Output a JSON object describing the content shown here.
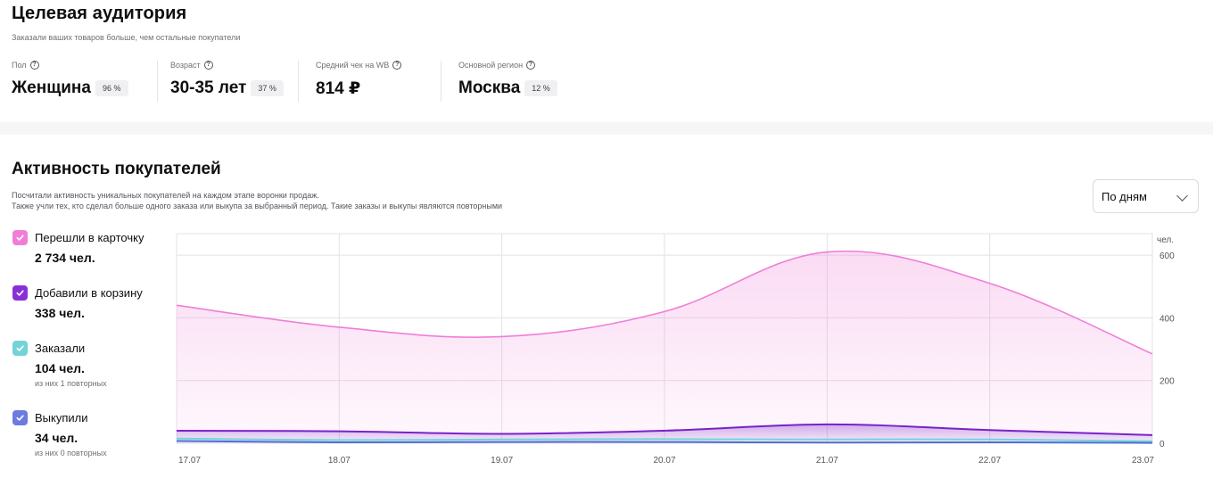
{
  "audience": {
    "title": "Целевая аудитория",
    "subtitle": "Заказали ваших товаров больше, чем остальные покупатели",
    "stats": [
      {
        "label": "Пол",
        "value": "Женщина",
        "badge": "96 %"
      },
      {
        "label": "Возраст",
        "value": "30-35 лет",
        "badge": "37 %"
      },
      {
        "label": "Средний чек на WB",
        "value": "814 ₽",
        "badge": ""
      },
      {
        "label": "Основной регион",
        "value": "Москва",
        "badge": "12 %"
      }
    ],
    "help_icon": "?"
  },
  "activity": {
    "title": "Активность покупателей",
    "desc_line1": "Посчитали активность уникальных покупателей на каждом этапе воронки продаж.",
    "desc_line2": "Также учли тех, кто сделал больше одного заказа или выкупа за выбранный период. Такие заказы и выкупы являются повторными",
    "period_select": "По дням"
  },
  "legend": [
    {
      "label": "Перешли в карточку",
      "value": "2 734 чел.",
      "note": "",
      "color": "#f07ed6"
    },
    {
      "label": "Добавили в корзину",
      "value": "338 чел.",
      "note": "",
      "color": "#8a2fd8"
    },
    {
      "label": "Заказали",
      "value": "104 чел.",
      "note": "из них 1 повторных",
      "color": "#74d3d6"
    },
    {
      "label": "Выкупили",
      "value": "34 чел.",
      "note": "из них 0 повторных",
      "color": "#6d7be0"
    }
  ],
  "chart_data": {
    "type": "area",
    "x": [
      "17.07",
      "18.07",
      "19.07",
      "20.07",
      "21.07",
      "22.07",
      "23.07"
    ],
    "y_unit_label": "чел.",
    "y_ticks": [
      0,
      200,
      400,
      600
    ],
    "ylim": [
      0,
      640
    ],
    "series": [
      {
        "name": "Перешли в карточку",
        "color": "#f07ed6",
        "fill": true,
        "values": [
          440,
          370,
          340,
          420,
          610,
          510,
          285
        ]
      },
      {
        "name": "Добавили в корзину",
        "color": "#7a22c9",
        "fill": true,
        "values": [
          40,
          38,
          30,
          40,
          60,
          42,
          26
        ]
      },
      {
        "name": "Заказали",
        "color": "#74d3d6",
        "fill": false,
        "values": [
          15,
          10,
          12,
          13,
          12,
          12,
          6
        ]
      },
      {
        "name": "Выкупили",
        "color": "#4f6fd6",
        "fill": false,
        "values": [
          7,
          3,
          4,
          4,
          2,
          3,
          1
        ]
      }
    ],
    "grid": true
  }
}
